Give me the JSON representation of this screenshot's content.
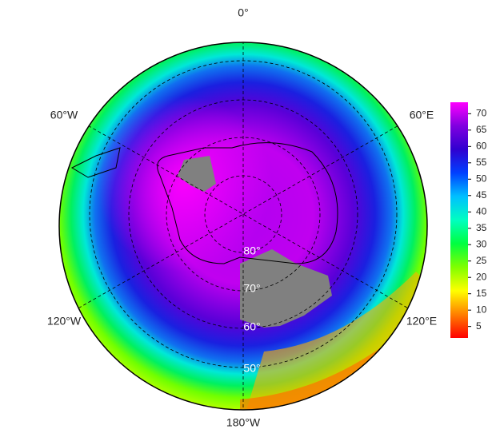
{
  "map": {
    "longitude_labels": [
      "0°",
      "60°W",
      "60°E",
      "120°W",
      "120°E",
      "180°W"
    ],
    "latitude_labels": [
      "80°",
      "70°",
      "60°",
      "50°"
    ]
  },
  "colorbar": {
    "lim": [
      1.5,
      73.5
    ],
    "ticks": [
      5,
      10,
      15,
      20,
      25,
      30,
      35,
      40,
      45,
      50,
      55,
      60,
      65,
      70
    ],
    "colors": [
      "#ff0000",
      "#ff8000",
      "#ffff00",
      "#80ff00",
      "#00ff40",
      "#00ffc0",
      "#00c0ff",
      "#0040ff",
      "#3000d0",
      "#8000e0",
      "#ff00ff"
    ]
  }
}
